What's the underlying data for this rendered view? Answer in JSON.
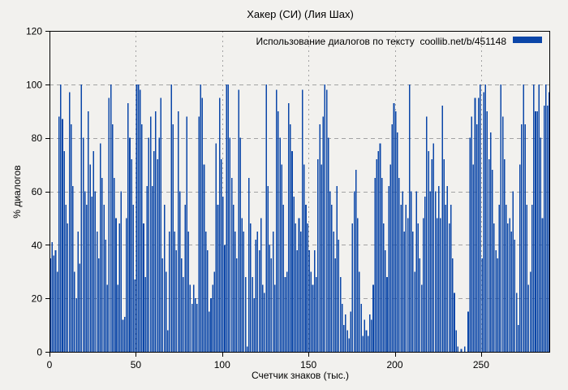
{
  "title": "Хакер (СИ) (Лия Шах)",
  "legend": {
    "label": "Использование диалогов по тексту  coollib.net/b/451148",
    "position": "top-right-inside"
  },
  "chart_data": {
    "type": "bar",
    "title": "Хакер (СИ) (Лия Шах)",
    "xlabel": "Счетчик знаков (тыс.)",
    "ylabel": "% диалогов",
    "legend_label": "Использование диалогов по тексту  coollib.net/b/451148",
    "xlim": [
      0,
      290
    ],
    "ylim": [
      0,
      120
    ],
    "xticks": [
      0,
      50,
      100,
      150,
      200,
      250
    ],
    "yticks": [
      0,
      20,
      40,
      60,
      80,
      100,
      120
    ],
    "grid": true,
    "bar_color": "#0b46a8",
    "axis_color": "#000000",
    "grid_color": "#a3a3a3",
    "background": "#f2f1ee",
    "x_unit_step": 1,
    "values": [
      35,
      41,
      36,
      38,
      30,
      88,
      100,
      87,
      75,
      55,
      48,
      97,
      85,
      62,
      30,
      20,
      45,
      33,
      100,
      80,
      60,
      55,
      90,
      70,
      58,
      75,
      60,
      45,
      35,
      78,
      65,
      55,
      42,
      25,
      95,
      100,
      85,
      65,
      50,
      25,
      48,
      60,
      12,
      13,
      50,
      93,
      80,
      72,
      55,
      27,
      100,
      100,
      98,
      85,
      48,
      28,
      62,
      80,
      88,
      62,
      75,
      90,
      72,
      80,
      95,
      35,
      55,
      30,
      8,
      45,
      100,
      85,
      45,
      38,
      90,
      60,
      35,
      28,
      55,
      88,
      45,
      25,
      18,
      25,
      20,
      18,
      88,
      100,
      95,
      70,
      45,
      38,
      15,
      20,
      25,
      30,
      78,
      55,
      95,
      72,
      58,
      40,
      100,
      100,
      80,
      65,
      55,
      45,
      35,
      98,
      80,
      50,
      45,
      28,
      2,
      65,
      48,
      28,
      20,
      42,
      45,
      38,
      50,
      25,
      22,
      100,
      62,
      40,
      35,
      45,
      25,
      98,
      90,
      80,
      70,
      55,
      28,
      30,
      93,
      85,
      75,
      58,
      48,
      38,
      50,
      45,
      98,
      70,
      55,
      48,
      38,
      30,
      25,
      38,
      28,
      72,
      85,
      70,
      88,
      100,
      98,
      80,
      60,
      55,
      45,
      35,
      62,
      42,
      28,
      18,
      10,
      14,
      8,
      5,
      15,
      48,
      60,
      68,
      50,
      30,
      18,
      6,
      12,
      8,
      6,
      14,
      12,
      25,
      65,
      72,
      75,
      78,
      65,
      48,
      38,
      28,
      62,
      70,
      85,
      93,
      90,
      82,
      65,
      55,
      60,
      45,
      55,
      50,
      100,
      60,
      45,
      30,
      60,
      48,
      35,
      25,
      50,
      58,
      88,
      75,
      60,
      72,
      78,
      60,
      50,
      62,
      50,
      92,
      72,
      55,
      62,
      48,
      55,
      35,
      22,
      8,
      2,
      0,
      1,
      0,
      2,
      0,
      15,
      80,
      88,
      70,
      95,
      85,
      95,
      100,
      35,
      97,
      100,
      90,
      72,
      82,
      68,
      48,
      38,
      35,
      55,
      100,
      88,
      72,
      55,
      48,
      50,
      45,
      60,
      42,
      22,
      10,
      70,
      85,
      100,
      85,
      55,
      25,
      30,
      55,
      100,
      90,
      90,
      100,
      80,
      50,
      92,
      100,
      92,
      97
    ]
  }
}
